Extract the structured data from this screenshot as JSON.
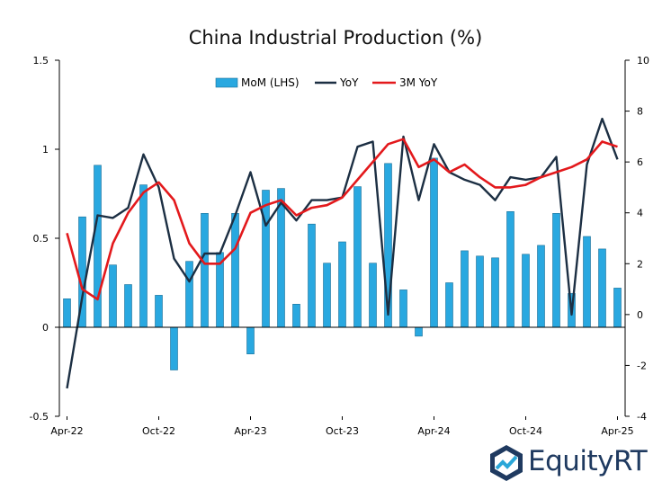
{
  "chart_data": {
    "type": "bar",
    "title": "China Industrial Production (%)",
    "x_tick_labels": [
      "Apr-22",
      "Oct-22",
      "Apr-23",
      "Oct-23",
      "Apr-24",
      "Oct-24",
      "Apr-25"
    ],
    "categories": [
      "Apr-22",
      "May-22",
      "Jun-22",
      "Jul-22",
      "Aug-22",
      "Sep-22",
      "Oct-22",
      "Nov-22",
      "Dec-22",
      "Jan-23",
      "Feb-23",
      "Mar-23",
      "Apr-23",
      "May-23",
      "Jun-23",
      "Jul-23",
      "Aug-23",
      "Sep-23",
      "Oct-23",
      "Nov-23",
      "Dec-23",
      "Jan-24",
      "Feb-24",
      "Mar-24",
      "Apr-24",
      "May-24",
      "Jun-24",
      "Jul-24",
      "Aug-24",
      "Sep-24",
      "Oct-24",
      "Nov-24",
      "Dec-24",
      "Jan-25",
      "Feb-25",
      "Mar-25",
      "Apr-25"
    ],
    "left_axis": {
      "ylim": [
        -0.5,
        1.5
      ],
      "ticks": [
        "-0.5",
        "0",
        "0.5",
        "1",
        "1.5"
      ],
      "tick_values": [
        -0.5,
        0,
        0.5,
        1,
        1.5
      ]
    },
    "right_axis": {
      "ylim": [
        -4,
        10
      ],
      "ticks": [
        "-4",
        "-2",
        "0",
        "2",
        "4",
        "6",
        "8",
        "10"
      ],
      "tick_values": [
        -4,
        -2,
        0,
        2,
        4,
        6,
        8,
        10
      ]
    },
    "series": [
      {
        "name": "MoM (LHS)",
        "type": "bar",
        "axis": "left",
        "color": "#29a8e0",
        "values": [
          0.16,
          0.62,
          0.91,
          0.35,
          0.24,
          0.8,
          0.18,
          -0.24,
          0.37,
          0.64,
          0.42,
          0.64,
          -0.15,
          0.77,
          0.78,
          0.13,
          0.58,
          0.36,
          0.48,
          0.79,
          0.36,
          0.92,
          0.21,
          -0.05,
          0.95,
          0.25,
          0.43,
          0.4,
          0.39,
          0.65,
          0.41,
          0.46,
          0.64,
          0.19,
          0.51,
          0.44,
          0.22
        ]
      },
      {
        "name": "YoY",
        "type": "line",
        "axis": "right",
        "color": "#1c2f43",
        "values": [
          -2.9,
          0.7,
          3.9,
          3.8,
          4.2,
          6.3,
          5.0,
          2.2,
          1.3,
          2.4,
          2.4,
          3.9,
          5.6,
          3.5,
          4.4,
          3.7,
          4.5,
          4.5,
          4.6,
          6.6,
          6.8,
          0.0,
          7.0,
          4.5,
          6.7,
          5.6,
          5.3,
          5.1,
          4.5,
          5.4,
          5.3,
          5.4,
          6.2,
          0.0,
          5.9,
          7.7,
          6.1
        ]
      },
      {
        "name": "3M YoY",
        "type": "line",
        "axis": "right",
        "color": "#e3191c",
        "values": [
          3.2,
          1.0,
          0.6,
          2.8,
          4.0,
          4.8,
          5.2,
          4.5,
          2.8,
          2.0,
          2.0,
          2.6,
          4.0,
          4.3,
          4.5,
          3.9,
          4.2,
          4.3,
          4.6,
          5.3,
          6.0,
          6.7,
          6.9,
          5.8,
          6.1,
          5.6,
          5.9,
          5.4,
          5.0,
          5.0,
          5.1,
          5.4,
          5.6,
          5.8,
          6.1,
          6.8,
          6.6
        ]
      }
    ],
    "legend": {
      "placement": "top-center",
      "entries": [
        "MoM (LHS)",
        "YoY",
        "3M YoY"
      ]
    },
    "grid": false
  },
  "branding": {
    "logo_text": "EquityRT",
    "logo_color": "#1f3a60",
    "logo_accent": "#2aa7d8"
  }
}
